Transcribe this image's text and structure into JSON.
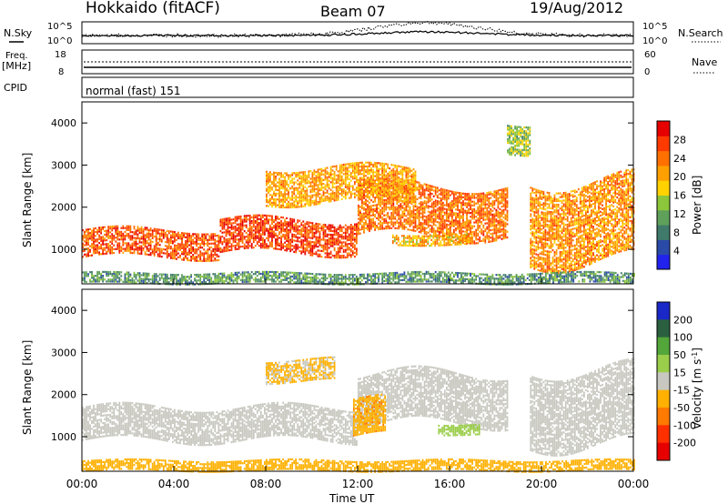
{
  "header": {
    "station": "Hokkaido (fitACF)",
    "beam": "Beam 07",
    "date": "19/Aug/2012"
  },
  "noise_panel": {
    "left_label": "N.Sky",
    "right_label": "N.Search",
    "left_ticks": [
      "10^5",
      "10^0"
    ],
    "right_ticks": [
      "10^5",
      "10^0"
    ]
  },
  "freq_panel": {
    "left_label": "Freq.",
    "left_unit": "[MHz]",
    "right_label": "Nave",
    "left_ticks": [
      "18",
      "8"
    ],
    "right_ticks": [
      "60",
      "0"
    ]
  },
  "cpid_panel": {
    "label": "CPID",
    "text": "normal (fast) 151"
  },
  "x_axis": {
    "label": "Time UT",
    "ticks": [
      "00:00",
      "04:00",
      "08:00",
      "12:00",
      "16:00",
      "20:00",
      "00:00"
    ]
  },
  "power_panel": {
    "ylabel": "Slant Range [km]",
    "yticks": [
      "1000",
      "2000",
      "3000",
      "4000"
    ],
    "colorbar_label": "Power [dB]",
    "colorbar_ticks": [
      "4",
      "8",
      "12",
      "16",
      "20",
      "24",
      "28"
    ]
  },
  "velocity_panel": {
    "ylabel": "Slant Range [km]",
    "yticks": [
      "1000",
      "2000",
      "3000",
      "4000"
    ],
    "colorbar_label": "Velocity [m s",
    "colorbar_label_sup": "-1",
    "colorbar_label_end": "]",
    "colorbar_ticks": [
      "200",
      "100",
      "50",
      "15",
      "-15",
      "-50",
      "-100",
      "-200"
    ]
  },
  "chart_data": {
    "type": "heatmap",
    "title": "Hokkaido (fitACF)",
    "x_range_hours": [
      0,
      24
    ],
    "y_range_km": [
      180,
      4500
    ],
    "xlabel": "Time UT",
    "ylabel": "Slant Range [km]",
    "power_scale_db": [
      0,
      32
    ],
    "velocity_scale_ms": [
      -250,
      250
    ],
    "power_colors": [
      "#2222ee",
      "#2a4aa8",
      "#3f7a6a",
      "#5fa05a",
      "#8cc63a",
      "#ffd200",
      "#ffa000",
      "#ff7000",
      "#ff3a00",
      "#e60000"
    ],
    "velocity_colors": [
      "#1a28c8",
      "#2a6040",
      "#52a63a",
      "#9acd4a",
      "#c8c8c0",
      "#ffb000",
      "#ff7a00",
      "#ff3000",
      "#e60000"
    ],
    "power_echo_bands": [
      {
        "t0": 0.0,
        "t1": 6.0,
        "r0": 800,
        "r1": 1450,
        "db": 26
      },
      {
        "t0": 6.0,
        "t1": 12.0,
        "r0": 900,
        "r1": 1700,
        "db": 27
      },
      {
        "t0": 12.0,
        "t1": 18.5,
        "r0": 1300,
        "r1": 2500,
        "db": 24
      },
      {
        "t0": 8.0,
        "t1": 14.5,
        "r0": 2100,
        "r1": 2950,
        "db": 21
      },
      {
        "t0": 13.5,
        "t1": 17.0,
        "r0": 1100,
        "r1": 1350,
        "db": 20
      },
      {
        "t0": 19.5,
        "t1": 24.0,
        "r0": 700,
        "r1": 2600,
        "db": 22
      },
      {
        "t0": 18.5,
        "t1": 19.5,
        "r0": 3300,
        "r1": 4000,
        "db": 14
      },
      {
        "t0": 0.0,
        "t1": 24.0,
        "r0": 180,
        "r1": 420,
        "db": 10
      }
    ],
    "velocity_echo_bands": [
      {
        "t0": 0.0,
        "t1": 12.0,
        "r0": 900,
        "r1": 1700,
        "v": 0
      },
      {
        "t0": 12.0,
        "t1": 18.5,
        "r0": 1300,
        "r1": 2500,
        "v": 0
      },
      {
        "t0": 11.8,
        "t1": 13.2,
        "r0": 1000,
        "r1": 1900,
        "v": -40
      },
      {
        "t0": 15.5,
        "t1": 17.3,
        "r0": 1050,
        "r1": 1300,
        "v": 30
      },
      {
        "t0": 8.0,
        "t1": 11.0,
        "r0": 2300,
        "r1": 2800,
        "v": -20
      },
      {
        "t0": 19.5,
        "t1": 24.0,
        "r0": 800,
        "r1": 2600,
        "v": 0
      },
      {
        "t0": 0.0,
        "t1": 24.0,
        "r0": 180,
        "r1": 420,
        "v": -30
      }
    ]
  }
}
